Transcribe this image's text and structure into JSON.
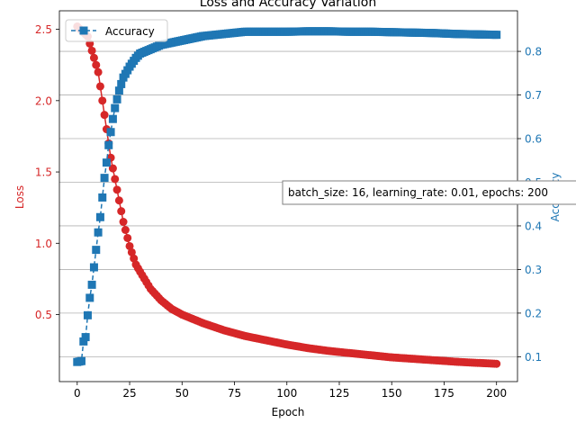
{
  "chart_data": {
    "type": "line",
    "title": "Loss and Accuracy Variation",
    "xlabel": "Epoch",
    "ylabel_left": "Loss",
    "ylabel_right": "Accuracy",
    "xlim": [
      -8.5,
      210
    ],
    "ylim_left": [
      0.03,
      2.63
    ],
    "ylim_right": [
      0.043,
      0.893
    ],
    "x_ticks": [
      0,
      25,
      50,
      75,
      100,
      125,
      150,
      175,
      200
    ],
    "y_ticks_left": [
      0.5,
      1.0,
      1.5,
      2.0,
      2.5
    ],
    "y_ticks_right": [
      0.1,
      0.2,
      0.3,
      0.4,
      0.5,
      0.6,
      0.7,
      0.8
    ],
    "grid": "horizontal, right axis",
    "legend": {
      "position": "top-left",
      "entries": [
        "Accuracy"
      ]
    },
    "annotation": "batch_size: 16, learning_rate: 0.01, epochs: 200",
    "colors": {
      "loss": "#d62728",
      "accuracy": "#1f77b4",
      "grid": "#b0b0b0"
    },
    "series": [
      {
        "name": "Loss",
        "axis": "left",
        "marker": "circle",
        "line": "solid",
        "points": [
          [
            0,
            2.52
          ],
          [
            5,
            2.45
          ],
          [
            8,
            2.3
          ],
          [
            10,
            2.2
          ],
          [
            12,
            2.0
          ],
          [
            14,
            1.8
          ],
          [
            16,
            1.6
          ],
          [
            18,
            1.45
          ],
          [
            20,
            1.3
          ],
          [
            22,
            1.15
          ],
          [
            25,
            0.98
          ],
          [
            28,
            0.85
          ],
          [
            30,
            0.8
          ],
          [
            35,
            0.68
          ],
          [
            40,
            0.6
          ],
          [
            45,
            0.54
          ],
          [
            50,
            0.5
          ],
          [
            60,
            0.44
          ],
          [
            70,
            0.39
          ],
          [
            80,
            0.35
          ],
          [
            90,
            0.32
          ],
          [
            100,
            0.29
          ],
          [
            110,
            0.265
          ],
          [
            120,
            0.245
          ],
          [
            130,
            0.23
          ],
          [
            140,
            0.215
          ],
          [
            150,
            0.2
          ],
          [
            160,
            0.19
          ],
          [
            170,
            0.18
          ],
          [
            180,
            0.17
          ],
          [
            190,
            0.162
          ],
          [
            200,
            0.155
          ]
        ]
      },
      {
        "name": "Accuracy",
        "axis": "right",
        "marker": "square",
        "line": "dashed",
        "points": [
          [
            0,
            0.088
          ],
          [
            2,
            0.09
          ],
          [
            3,
            0.135
          ],
          [
            4,
            0.145
          ],
          [
            5,
            0.195
          ],
          [
            6,
            0.235
          ],
          [
            7,
            0.265
          ],
          [
            8,
            0.305
          ],
          [
            9,
            0.345
          ],
          [
            10,
            0.385
          ],
          [
            11,
            0.42
          ],
          [
            12,
            0.465
          ],
          [
            13,
            0.51
          ],
          [
            14,
            0.545
          ],
          [
            15,
            0.585
          ],
          [
            16,
            0.615
          ],
          [
            17,
            0.645
          ],
          [
            18,
            0.67
          ],
          [
            19,
            0.69
          ],
          [
            20,
            0.71
          ],
          [
            22,
            0.74
          ],
          [
            25,
            0.765
          ],
          [
            28,
            0.785
          ],
          [
            30,
            0.795
          ],
          [
            35,
            0.805
          ],
          [
            40,
            0.815
          ],
          [
            45,
            0.82
          ],
          [
            50,
            0.825
          ],
          [
            60,
            0.835
          ],
          [
            70,
            0.84
          ],
          [
            80,
            0.845
          ],
          [
            90,
            0.845
          ],
          [
            100,
            0.845
          ],
          [
            110,
            0.846
          ],
          [
            120,
            0.846
          ],
          [
            130,
            0.845
          ],
          [
            140,
            0.845
          ],
          [
            150,
            0.844
          ],
          [
            160,
            0.843
          ],
          [
            170,
            0.842
          ],
          [
            180,
            0.84
          ],
          [
            190,
            0.839
          ],
          [
            200,
            0.838
          ]
        ]
      }
    ]
  }
}
